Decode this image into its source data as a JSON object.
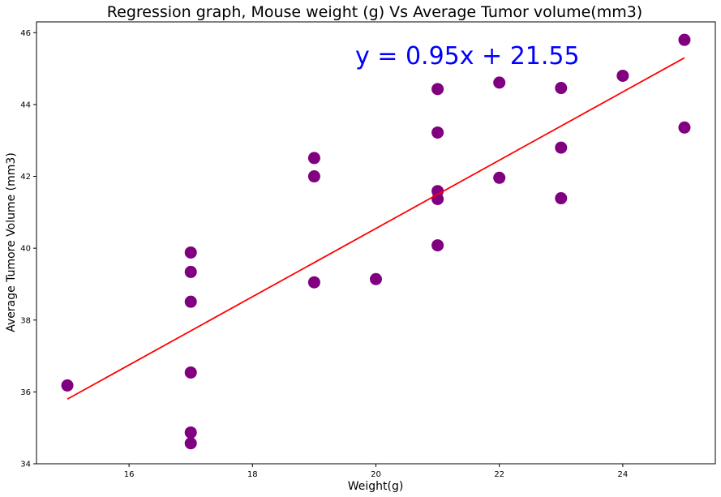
{
  "chart_data": {
    "type": "scatter",
    "title": "Regression graph, Mouse weight (g) Vs Average Tumor volume(mm3)",
    "xlabel": "Weight(g)",
    "ylabel": "Average Tumore Volume (mm3)",
    "xlim": [
      14.5,
      25.5
    ],
    "ylim": [
      34,
      46.3
    ],
    "xticks": [
      16,
      18,
      20,
      22,
      24
    ],
    "yticks": [
      34,
      36,
      38,
      40,
      42,
      44,
      46
    ],
    "grid": false,
    "point_color": "#800080",
    "line_color": "#ff0000",
    "equation_color": "#0000ff",
    "equation": "y = 0.95x + 21.55",
    "regression": {
      "slope": 0.95,
      "intercept": 21.55,
      "x_range": [
        15,
        25
      ]
    },
    "points": [
      {
        "x": 15,
        "y": 36.18
      },
      {
        "x": 17,
        "y": 39.88
      },
      {
        "x": 17,
        "y": 39.34
      },
      {
        "x": 17,
        "y": 38.51
      },
      {
        "x": 17,
        "y": 36.54
      },
      {
        "x": 17,
        "y": 34.87
      },
      {
        "x": 17,
        "y": 34.57
      },
      {
        "x": 19,
        "y": 42.51
      },
      {
        "x": 19,
        "y": 42.0
      },
      {
        "x": 19,
        "y": 39.05
      },
      {
        "x": 20,
        "y": 39.14
      },
      {
        "x": 21,
        "y": 44.43
      },
      {
        "x": 21,
        "y": 43.22
      },
      {
        "x": 21,
        "y": 41.59
      },
      {
        "x": 21,
        "y": 41.37
      },
      {
        "x": 21,
        "y": 40.08
      },
      {
        "x": 22,
        "y": 44.61
      },
      {
        "x": 22,
        "y": 41.96
      },
      {
        "x": 23,
        "y": 44.46
      },
      {
        "x": 23,
        "y": 42.8
      },
      {
        "x": 23,
        "y": 41.39
      },
      {
        "x": 24,
        "y": 44.8
      },
      {
        "x": 25,
        "y": 45.8
      },
      {
        "x": 25,
        "y": 43.36
      }
    ]
  }
}
